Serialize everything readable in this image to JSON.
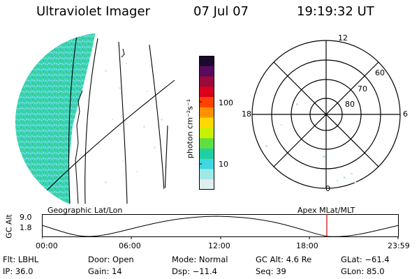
{
  "header": {
    "title": "Ultraviolet Imager",
    "date": "07 Jul 07",
    "time": "19:19:32 UT"
  },
  "geo_panel": {
    "label": "Geographic Lat/Lon"
  },
  "polar_panel": {
    "label": "Apex MLat/MLT",
    "mlt_labels": {
      "top": "12",
      "left": "18",
      "right": "6",
      "bottom": "0"
    },
    "lat_labels": [
      "60",
      "70",
      "80"
    ]
  },
  "colorbar": {
    "unit_label": "photon cm⁻²s⁻¹",
    "ticks": [
      "100",
      "10"
    ],
    "colors": [
      "#1a0a2e",
      "#5a0a5c",
      "#9a0a3a",
      "#d8001a",
      "#ff4000",
      "#ff9000",
      "#ffd800",
      "#c8f000",
      "#60e040",
      "#20d0a0",
      "#40d8e0",
      "#a0e8e8",
      "#e0f0f0"
    ]
  },
  "orbit_plot": {
    "ylabel": "GC Alt",
    "y_ticks": [
      "9.0",
      "1.8"
    ],
    "x_ticks": [
      "00:00",
      "06:00",
      "12:00",
      "18:00",
      "23:59"
    ],
    "current_marker_color": "#d00000"
  },
  "info": {
    "row1": {
      "flt": "Flt: LBHL",
      "door": "Door: Open",
      "mode": "Mode: Normal",
      "gcalt": "GC Alt: 4.6 Re",
      "glat": "GLat: −61.4"
    },
    "row2": {
      "ip": "IP: 36.0",
      "gain": "Gain: 14",
      "dsp": "Dsp: −11.4",
      "seq": "Seq: 39",
      "glon": "GLon: 85.0"
    }
  }
}
